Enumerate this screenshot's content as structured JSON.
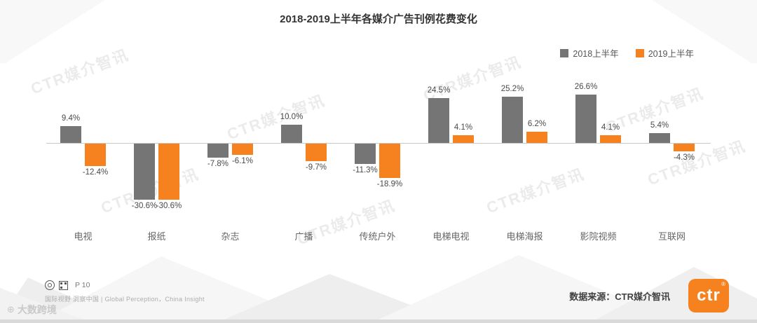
{
  "title": "2018-2019上半年各媒介广告刊例花费变化",
  "chart_data": {
    "type": "bar",
    "categories": [
      "电视",
      "报纸",
      "杂志",
      "广播",
      "传统户外",
      "电梯电视",
      "电梯海报",
      "影院视频",
      "互联网"
    ],
    "series": [
      {
        "name": "2018上半年",
        "color": "#757575",
        "values": [
          9.4,
          -30.6,
          -7.8,
          10.0,
          -11.3,
          24.5,
          25.2,
          26.6,
          5.4
        ]
      },
      {
        "name": "2019上半年",
        "color": "#f5821f",
        "values": [
          -12.4,
          -30.6,
          -6.1,
          -9.7,
          -18.9,
          4.1,
          6.2,
          4.1,
          -4.3
        ]
      }
    ],
    "value_suffix": "%",
    "ylim": [
      -35,
      30
    ],
    "grid": false,
    "legend_position": "top-right",
    "title": "2018-2019上半年各媒介广告刊例花费变化",
    "xlabel": "",
    "ylabel": ""
  },
  "watermark": {
    "text": "CTR媒介智讯"
  },
  "corner_watermark": {
    "icon": "⊕",
    "text": "大数跨境"
  },
  "footer": {
    "page": "P 10",
    "tagline": "国际视野 洞察中国 |  Global Perception，China Insight",
    "source": "数据来源：CTR媒介智讯",
    "logo_text": "ctr",
    "logo_reg": "®",
    "logo_color": "#f5821f"
  }
}
